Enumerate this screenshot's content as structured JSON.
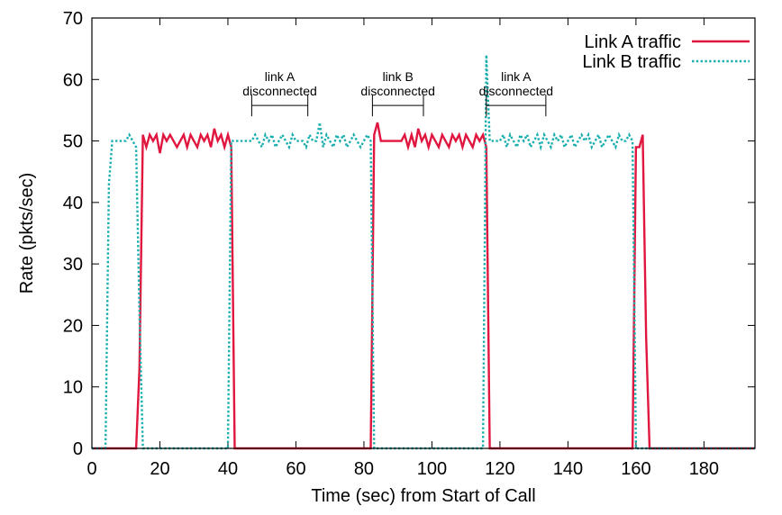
{
  "chart_data": {
    "type": "line",
    "title": "",
    "xlabel": "Time (sec) from Start of Call",
    "ylabel": "Rate (pkts/sec)",
    "xlim": [
      0,
      195
    ],
    "ylim": [
      0,
      70
    ],
    "xticks": [
      0,
      20,
      40,
      60,
      80,
      100,
      120,
      140,
      160,
      180
    ],
    "yticks": [
      0,
      10,
      20,
      30,
      40,
      50,
      60,
      70
    ],
    "grid": false,
    "legend_position": "top-right",
    "series": [
      {
        "name": "Link A traffic",
        "color": "#e0163f",
        "style": "solid",
        "x": [
          0,
          13,
          14,
          15,
          16,
          17,
          18,
          19,
          20,
          21,
          22,
          23,
          24,
          25,
          26,
          27,
          28,
          29,
          30,
          31,
          32,
          33,
          34,
          35,
          36,
          37,
          38,
          39,
          40,
          41,
          42,
          50,
          60,
          70,
          80,
          81,
          82,
          83,
          84,
          85,
          86,
          87,
          88,
          89,
          90,
          91,
          92,
          93,
          94,
          95,
          96,
          97,
          98,
          99,
          100,
          101,
          102,
          103,
          104,
          105,
          106,
          107,
          108,
          109,
          110,
          111,
          112,
          113,
          114,
          115,
          116,
          117,
          120,
          130,
          140,
          150,
          158,
          159,
          160,
          161,
          162,
          163,
          164,
          180,
          195
        ],
        "y": [
          0,
          0,
          13,
          51,
          49,
          51,
          50,
          51,
          48,
          51,
          50,
          51,
          50,
          49,
          50,
          51,
          49,
          51,
          50,
          49,
          51,
          50,
          51,
          49,
          52,
          50,
          51,
          49,
          51,
          49,
          0,
          0,
          0,
          0,
          0,
          0,
          0,
          51,
          53,
          50,
          50,
          50,
          50,
          50,
          50,
          50,
          51,
          49,
          51,
          49,
          52,
          50,
          51,
          49,
          51,
          50,
          49,
          51,
          50,
          49,
          51,
          50,
          51,
          49,
          51,
          50,
          49,
          51,
          50,
          51,
          49,
          0,
          0,
          0,
          0,
          0,
          0,
          0,
          49,
          49,
          51,
          18,
          0,
          0,
          0
        ]
      },
      {
        "name": "Link B traffic",
        "color": "#1aaeae",
        "style": "dotted",
        "x": [
          0,
          4,
          5,
          6,
          7,
          8,
          9,
          10,
          11,
          12,
          13,
          14,
          15,
          16,
          20,
          30,
          39,
          40,
          41,
          42,
          43,
          44,
          45,
          46,
          47,
          48,
          49,
          50,
          51,
          52,
          53,
          54,
          55,
          56,
          57,
          58,
          59,
          60,
          61,
          62,
          63,
          64,
          65,
          66,
          67,
          68,
          69,
          70,
          71,
          72,
          73,
          74,
          75,
          76,
          77,
          78,
          79,
          80,
          81,
          82,
          83,
          84,
          90,
          100,
          110,
          115,
          116,
          117,
          118,
          119,
          120,
          121,
          122,
          123,
          124,
          125,
          126,
          127,
          128,
          129,
          130,
          131,
          132,
          133,
          134,
          135,
          136,
          137,
          138,
          139,
          140,
          141,
          142,
          143,
          144,
          145,
          146,
          147,
          148,
          149,
          150,
          151,
          152,
          153,
          154,
          155,
          156,
          157,
          158,
          159,
          160,
          161,
          170,
          195
        ],
        "y": [
          0,
          0,
          43,
          50,
          50,
          50,
          50,
          50,
          51,
          50,
          49,
          22,
          0,
          0,
          0,
          0,
          0,
          0,
          50,
          50,
          50,
          50,
          50,
          50,
          50,
          51,
          50,
          49,
          51,
          50,
          51,
          49,
          50,
          51,
          50,
          49,
          51,
          50,
          50,
          50,
          49,
          51,
          50,
          50,
          53,
          49,
          51,
          50,
          49,
          51,
          50,
          51,
          49,
          50,
          51,
          50,
          49,
          50,
          51,
          50,
          0,
          0,
          0,
          0,
          0,
          0,
          64,
          50,
          50,
          50,
          50,
          51,
          49,
          51,
          50,
          49,
          51,
          50,
          51,
          49,
          50,
          51,
          49,
          51,
          50,
          49,
          51,
          50,
          51,
          49,
          50,
          51,
          49,
          50,
          51,
          50,
          51,
          49,
          50,
          51,
          49,
          50,
          51,
          50,
          49,
          51,
          50,
          50,
          51,
          50,
          0,
          0,
          0,
          0
        ]
      }
    ],
    "annotations": [
      {
        "line1": "link A",
        "line2": "disconnected",
        "x_start": 47,
        "x_end": 63.5,
        "y": 50.5
      },
      {
        "line1": "link B",
        "line2": "disconnected",
        "x_start": 82.5,
        "x_end": 97.5,
        "y": 50.5
      },
      {
        "line1": "link A",
        "line2": "disconnected",
        "x_start": 116,
        "x_end": 133.5,
        "y": 50.5
      }
    ]
  }
}
